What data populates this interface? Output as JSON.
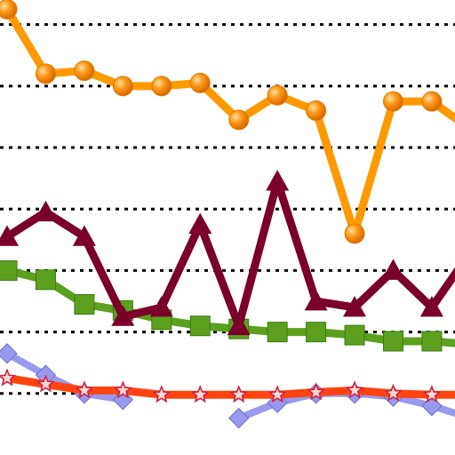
{
  "chart_data": {
    "type": "line",
    "x": [
      0,
      1,
      2,
      3,
      4,
      5,
      6,
      7,
      8,
      9,
      10,
      11,
      12
    ],
    "xlim": [
      0,
      11.6
    ],
    "ylim": [
      0,
      7.4
    ],
    "grid": {
      "horizontal": true,
      "style": "dotted",
      "values": [
        1,
        2,
        3,
        4,
        5,
        6,
        7
      ]
    },
    "legend": "none",
    "series": [
      {
        "color": "#FF9900",
        "marker": "sphere",
        "values": [
          7.25,
          6.2,
          6.25,
          6.0,
          6.0,
          6.05,
          5.45,
          5.85,
          5.6,
          3.6,
          5.75,
          5.75,
          5.3
        ]
      },
      {
        "color": "#7A0029",
        "marker": "triangle",
        "values": [
          3.55,
          3.95,
          3.55,
          2.25,
          2.4,
          3.75,
          2.1,
          4.45,
          2.5,
          2.4,
          3.0,
          2.4,
          3.3
        ]
      },
      {
        "color": "#5BA01F",
        "marker": "square",
        "values": [
          3.0,
          2.85,
          2.45,
          2.35,
          2.2,
          2.1,
          2.05,
          2.0,
          2.0,
          1.95,
          1.85,
          1.85,
          1.8
        ]
      },
      {
        "color": "#FF4411",
        "marker": "star",
        "values": [
          1.25,
          1.15,
          1.05,
          1.05,
          0.98,
          0.98,
          0.98,
          0.98,
          1.02,
          1.05,
          1.0,
          0.98,
          0.98
        ]
      },
      {
        "color": "#9999EE",
        "marker": "diamond",
        "values": [
          1.65,
          1.3,
          1.0,
          0.9,
          null,
          null,
          0.6,
          0.85,
          1.0,
          1.0,
          0.95,
          0.8,
          0.6
        ]
      }
    ]
  }
}
